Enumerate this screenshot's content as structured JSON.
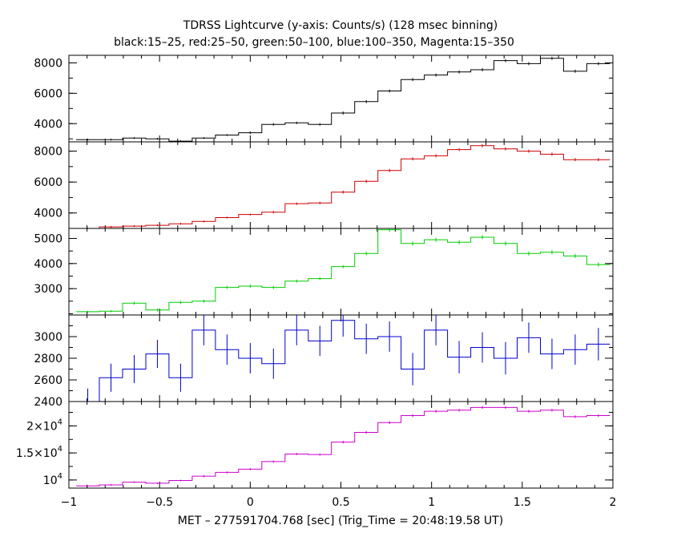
{
  "chart_data": {
    "type": "line",
    "title": "TDRSS Lightcurve (y-axis: Counts/s) (128 msec binning)",
    "subtitle": "black:15–25, red:25–50, green:50–100, blue:100–350, Magenta:15–350",
    "xlabel": "MET – 277591704.768 [sec] (Trig_Time = 20:48:19.58 UT)",
    "xlim": [
      -1,
      2
    ],
    "x_ticks": [
      {
        "value": -1,
        "label": "−1"
      },
      {
        "value": -0.5,
        "label": "−0.5"
      },
      {
        "value": 0,
        "label": "0"
      },
      {
        "value": 0.5,
        "label": "0.5"
      },
      {
        "value": 1,
        "label": "1"
      },
      {
        "value": 1.5,
        "label": "1.5"
      },
      {
        "value": 2,
        "label": "2"
      }
    ],
    "bins": {
      "start": -0.96,
      "width": 0.128,
      "centers": [
        -0.896,
        -0.768,
        -0.64,
        -0.512,
        -0.384,
        -0.256,
        -0.128,
        0.0,
        0.128,
        0.256,
        0.384,
        0.512,
        0.64,
        0.768,
        0.896,
        1.024,
        1.152,
        1.28,
        1.408,
        1.536,
        1.664,
        1.792,
        1.92
      ]
    },
    "panels": [
      {
        "name": "black",
        "color": "#000000",
        "ylim": [
          2800,
          8500
        ],
        "y_ticks": [
          {
            "value": 4000,
            "label": "4000"
          },
          {
            "value": 6000,
            "label": "6000"
          },
          {
            "value": 8000,
            "label": "8000"
          }
        ],
        "values": [
          2950,
          2950,
          3050,
          3000,
          2850,
          3050,
          3250,
          3400,
          3950,
          4050,
          3950,
          4700,
          5450,
          6150,
          6900,
          7200,
          7400,
          7550,
          8150,
          7950,
          8300,
          7450,
          7950
        ],
        "errors": [
          60,
          60,
          60,
          60,
          60,
          60,
          60,
          80,
          80,
          80,
          80,
          100,
          100,
          100,
          100,
          100,
          100,
          100,
          100,
          100,
          100,
          100,
          100
        ]
      },
      {
        "name": "red",
        "color": "#cc0000",
        "ylim": [
          3000,
          8600
        ],
        "y_ticks": [
          {
            "value": 4000,
            "label": "4000"
          },
          {
            "value": 6000,
            "label": "6000"
          },
          {
            "value": 8000,
            "label": "8000"
          }
        ],
        "values": [
          3000,
          3100,
          3150,
          3200,
          3300,
          3450,
          3700,
          3900,
          4050,
          4600,
          4650,
          5350,
          6050,
          6750,
          7500,
          7700,
          8100,
          8350,
          8150,
          8000,
          7800,
          7450,
          7450
        ],
        "errors": [
          60,
          60,
          60,
          60,
          60,
          60,
          60,
          60,
          80,
          80,
          80,
          100,
          100,
          100,
          100,
          100,
          100,
          100,
          100,
          100,
          100,
          100,
          100
        ]
      },
      {
        "name": "green",
        "color": "#00cc00",
        "ylim": [
          1950,
          5400
        ],
        "y_ticks": [
          {
            "value": 3000,
            "label": "3000"
          },
          {
            "value": 4000,
            "label": "4000"
          },
          {
            "value": 5000,
            "label": "5000"
          }
        ],
        "values": [
          2080,
          2100,
          2420,
          2150,
          2450,
          2500,
          3050,
          3100,
          3050,
          3300,
          3400,
          3880,
          4400,
          5350,
          4800,
          4950,
          4850,
          5050,
          4800,
          4400,
          4450,
          4300,
          3960
        ],
        "errors": [
          40,
          40,
          60,
          60,
          60,
          60,
          60,
          60,
          60,
          60,
          60,
          60,
          70,
          80,
          80,
          80,
          80,
          80,
          80,
          80,
          80,
          80,
          80
        ]
      },
      {
        "name": "blue",
        "color": "#0000cc",
        "ylim": [
          2400,
          3200
        ],
        "y_ticks": [
          {
            "value": 2400,
            "label": "2400"
          },
          {
            "value": 2600,
            "label": "2600"
          },
          {
            "value": 2800,
            "label": "2800"
          },
          {
            "value": 3000,
            "label": "3000"
          }
        ],
        "values": [
          2400,
          2620,
          2700,
          2840,
          2620,
          3060,
          2880,
          2800,
          2750,
          3060,
          2960,
          3150,
          2980,
          3000,
          2700,
          3060,
          2810,
          2900,
          2800,
          2990,
          2840,
          2880,
          2930
        ],
        "errors": [
          120,
          130,
          130,
          130,
          130,
          140,
          140,
          140,
          140,
          140,
          140,
          150,
          140,
          140,
          150,
          140,
          150,
          140,
          150,
          140,
          140,
          140,
          150
        ]
      },
      {
        "name": "magenta",
        "color": "#cc00cc",
        "ylim": [
          8500,
          24500
        ],
        "y_ticks": [
          {
            "value": 10000,
            "mantissa": "10",
            "exponent": "4"
          },
          {
            "value": 15000,
            "mantissa": "1.5×10",
            "exponent": "4"
          },
          {
            "value": 20000,
            "mantissa": "2×10",
            "exponent": "4"
          }
        ],
        "values": [
          8900,
          9100,
          9600,
          9400,
          9900,
          10700,
          11400,
          12000,
          13400,
          14800,
          14700,
          17000,
          18800,
          20600,
          21900,
          22700,
          22900,
          23400,
          23400,
          22700,
          22900,
          21700,
          21900
        ],
        "errors": [
          150,
          150,
          150,
          150,
          150,
          200,
          200,
          200,
          200,
          200,
          200,
          250,
          250,
          250,
          250,
          250,
          250,
          250,
          250,
          250,
          250,
          250,
          250
        ]
      }
    ]
  }
}
